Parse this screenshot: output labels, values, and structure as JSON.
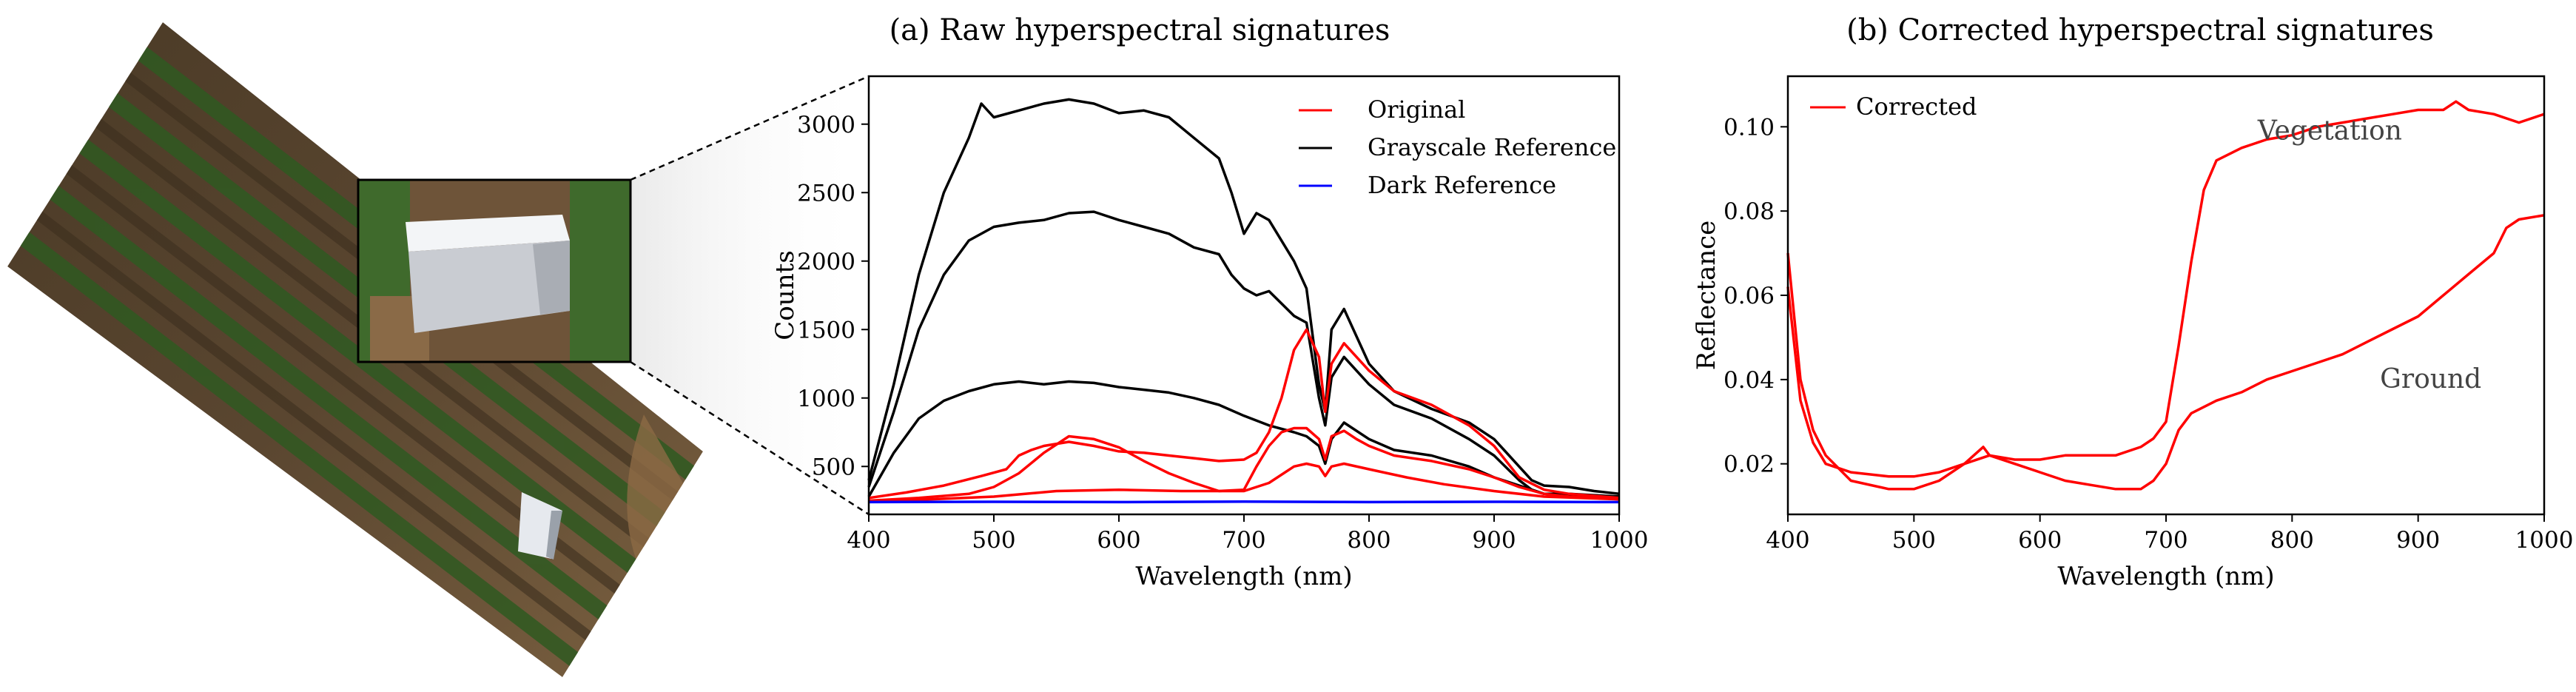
{
  "colors": {
    "original": "#ff0000",
    "grayscale": "#000000",
    "dark": "#0000ff",
    "corrected": "#ff0000"
  },
  "photo": {
    "name": "aerial-field-photo"
  },
  "chart_data": [
    {
      "id": "a",
      "type": "line",
      "title": "(a) Raw hyperspectral signatures",
      "xlabel": "Wavelength (nm)",
      "ylabel": "Counts",
      "xlim": [
        400,
        1000
      ],
      "ylim": [
        150,
        3350
      ],
      "xticks": [
        400,
        500,
        600,
        700,
        800,
        900,
        1000
      ],
      "yticks": [
        500,
        1000,
        1500,
        2000,
        2500,
        3000
      ],
      "grid": false,
      "legend_position": "top-right",
      "legend": [
        "Original",
        "Grayscale Reference",
        "Dark Reference"
      ],
      "series": [
        {
          "name": "Grayscale Reference",
          "group": "grayscale",
          "x": [
            400,
            420,
            440,
            460,
            480,
            490,
            500,
            520,
            540,
            560,
            580,
            600,
            620,
            640,
            660,
            680,
            690,
            700,
            710,
            720,
            740,
            750,
            760,
            765,
            770,
            780,
            800,
            820,
            850,
            880,
            900,
            920,
            930,
            940,
            960,
            980,
            1000
          ],
          "y": [
            400,
            1100,
            1900,
            2500,
            2900,
            3150,
            3050,
            3100,
            3150,
            3180,
            3150,
            3080,
            3100,
            3050,
            2900,
            2750,
            2500,
            2200,
            2350,
            2300,
            2000,
            1800,
            1100,
            900,
            1500,
            1650,
            1250,
            1050,
            920,
            820,
            700,
            500,
            400,
            360,
            350,
            320,
            300
          ]
        },
        {
          "name": "Grayscale Reference",
          "group": "grayscale",
          "x": [
            400,
            420,
            440,
            460,
            480,
            500,
            520,
            540,
            560,
            580,
            600,
            620,
            640,
            660,
            680,
            690,
            700,
            710,
            720,
            740,
            750,
            760,
            765,
            770,
            780,
            800,
            820,
            850,
            880,
            900,
            920,
            930,
            940,
            960,
            980,
            1000
          ],
          "y": [
            350,
            900,
            1500,
            1900,
            2150,
            2250,
            2280,
            2300,
            2350,
            2360,
            2300,
            2250,
            2200,
            2100,
            2050,
            1900,
            1800,
            1750,
            1780,
            1600,
            1550,
            1000,
            800,
            1150,
            1300,
            1100,
            950,
            850,
            700,
            580,
            400,
            330,
            300,
            300,
            290,
            280
          ]
        },
        {
          "name": "Grayscale Reference",
          "group": "grayscale",
          "x": [
            400,
            420,
            440,
            460,
            480,
            500,
            520,
            540,
            560,
            580,
            600,
            620,
            640,
            660,
            680,
            700,
            720,
            740,
            750,
            760,
            765,
            770,
            780,
            800,
            820,
            850,
            880,
            900,
            920,
            940,
            960,
            1000
          ],
          "y": [
            280,
            600,
            850,
            980,
            1050,
            1100,
            1120,
            1100,
            1120,
            1110,
            1080,
            1060,
            1040,
            1000,
            950,
            870,
            800,
            750,
            720,
            650,
            520,
            700,
            820,
            700,
            620,
            580,
            500,
            420,
            360,
            300,
            290,
            280
          ]
        },
        {
          "name": "Original",
          "group": "original",
          "x": [
            400,
            430,
            460,
            490,
            510,
            520,
            530,
            540,
            560,
            580,
            600,
            620,
            640,
            660,
            680,
            700,
            710,
            720,
            730,
            740,
            750,
            760,
            765,
            770,
            780,
            790,
            800,
            820,
            850,
            880,
            900,
            920,
            940,
            960,
            1000
          ],
          "y": [
            270,
            310,
            360,
            430,
            480,
            580,
            620,
            650,
            680,
            650,
            610,
            600,
            580,
            560,
            540,
            550,
            600,
            750,
            1000,
            1350,
            1500,
            1300,
            900,
            1250,
            1400,
            1300,
            1200,
            1050,
            950,
            800,
            650,
            420,
            330,
            300,
            270
          ]
        },
        {
          "name": "Original",
          "group": "original",
          "x": [
            400,
            440,
            480,
            500,
            520,
            540,
            560,
            580,
            600,
            620,
            640,
            660,
            680,
            700,
            710,
            720,
            730,
            740,
            750,
            760,
            765,
            770,
            780,
            790,
            800,
            820,
            850,
            880,
            900,
            920,
            940,
            960,
            1000
          ],
          "y": [
            250,
            270,
            300,
            350,
            450,
            600,
            720,
            700,
            640,
            540,
            450,
            380,
            320,
            330,
            500,
            650,
            750,
            780,
            780,
            700,
            550,
            720,
            760,
            700,
            650,
            580,
            540,
            480,
            420,
            350,
            300,
            280,
            260
          ]
        },
        {
          "name": "Original",
          "group": "original",
          "x": [
            400,
            450,
            500,
            550,
            600,
            650,
            700,
            720,
            740,
            750,
            760,
            765,
            770,
            780,
            800,
            830,
            860,
            900,
            940,
            1000
          ],
          "y": [
            250,
            260,
            280,
            320,
            330,
            320,
            320,
            380,
            500,
            520,
            500,
            430,
            500,
            520,
            480,
            420,
            370,
            320,
            280,
            260
          ]
        },
        {
          "name": "Dark Reference",
          "group": "dark",
          "x": [
            400,
            500,
            600,
            700,
            800,
            900,
            1000
          ],
          "y": [
            240,
            242,
            240,
            243,
            240,
            242,
            240
          ]
        }
      ]
    },
    {
      "id": "b",
      "type": "line",
      "title": "(b) Corrected hyperspectral signatures",
      "xlabel": "Wavelength (nm)",
      "ylabel": "Reflectance",
      "xlim": [
        400,
        1000
      ],
      "ylim": [
        0.008,
        0.112
      ],
      "xticks": [
        400,
        500,
        600,
        700,
        800,
        900,
        1000
      ],
      "yticks": [
        0.02,
        0.04,
        0.06,
        0.08,
        0.1
      ],
      "ytick_labels": [
        "0.02",
        "0.04",
        "0.06",
        "0.08",
        "0.10"
      ],
      "grid": false,
      "legend_position": "top-left",
      "legend": [
        "Corrected"
      ],
      "annotations": [
        {
          "text": "Vegetation",
          "x": 830,
          "y": 0.097
        },
        {
          "text": "Ground",
          "x": 910,
          "y": 0.038
        }
      ],
      "series": [
        {
          "name": "Vegetation",
          "group": "corrected",
          "x": [
            400,
            410,
            420,
            430,
            450,
            480,
            500,
            520,
            540,
            555,
            560,
            580,
            600,
            620,
            640,
            660,
            680,
            690,
            700,
            710,
            720,
            730,
            740,
            760,
            780,
            800,
            820,
            840,
            860,
            880,
            900,
            920,
            930,
            940,
            960,
            980,
            1000
          ],
          "y": [
            0.07,
            0.04,
            0.028,
            0.022,
            0.016,
            0.014,
            0.014,
            0.016,
            0.02,
            0.024,
            0.022,
            0.021,
            0.021,
            0.022,
            0.022,
            0.022,
            0.024,
            0.026,
            0.03,
            0.048,
            0.068,
            0.085,
            0.092,
            0.095,
            0.097,
            0.098,
            0.1,
            0.101,
            0.102,
            0.103,
            0.104,
            0.104,
            0.106,
            0.104,
            0.103,
            0.101,
            0.103
          ]
        },
        {
          "name": "Ground",
          "group": "corrected",
          "x": [
            400,
            410,
            420,
            430,
            450,
            480,
            500,
            520,
            540,
            560,
            580,
            600,
            620,
            640,
            660,
            680,
            690,
            700,
            710,
            720,
            740,
            760,
            780,
            800,
            820,
            840,
            860,
            880,
            900,
            920,
            940,
            960,
            970,
            980,
            1000
          ],
          "y": [
            0.062,
            0.035,
            0.025,
            0.02,
            0.018,
            0.017,
            0.017,
            0.018,
            0.02,
            0.022,
            0.02,
            0.018,
            0.016,
            0.015,
            0.014,
            0.014,
            0.016,
            0.02,
            0.028,
            0.032,
            0.035,
            0.037,
            0.04,
            0.042,
            0.044,
            0.046,
            0.049,
            0.052,
            0.055,
            0.06,
            0.065,
            0.07,
            0.076,
            0.078,
            0.079
          ]
        }
      ]
    }
  ]
}
